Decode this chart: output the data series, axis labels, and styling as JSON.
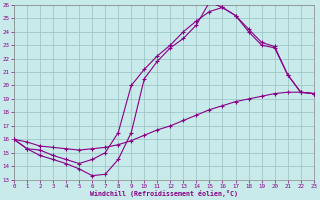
{
  "xlabel": "Windchill (Refroidissement éolien,°C)",
  "bg_color": "#c8eaea",
  "grid_color": "#9fc8c8",
  "line_color": "#880088",
  "xlim": [
    0,
    23
  ],
  "ylim": [
    13,
    26
  ],
  "xticks": [
    0,
    1,
    2,
    3,
    4,
    5,
    6,
    7,
    8,
    9,
    10,
    11,
    12,
    13,
    14,
    15,
    16,
    17,
    18,
    19,
    20,
    21,
    22,
    23
  ],
  "yticks": [
    13,
    14,
    15,
    16,
    17,
    18,
    19,
    20,
    21,
    22,
    23,
    24,
    25,
    26
  ],
  "line1_x": [
    0,
    1,
    2,
    3,
    4,
    5,
    6,
    7,
    8,
    9,
    10,
    11,
    12,
    13,
    14,
    15,
    16,
    17,
    18,
    19,
    20,
    21,
    22,
    23
  ],
  "line1_y": [
    16.0,
    15.8,
    15.5,
    15.4,
    15.3,
    15.2,
    15.3,
    15.4,
    15.6,
    15.9,
    16.3,
    16.7,
    17.0,
    17.4,
    17.8,
    18.2,
    18.5,
    18.8,
    19.0,
    19.2,
    19.4,
    19.5,
    19.5,
    19.4
  ],
  "line2_x": [
    0,
    1,
    2,
    3,
    4,
    5,
    6,
    7,
    8,
    9,
    10,
    11,
    12,
    13,
    14,
    15,
    16,
    17,
    18,
    19,
    20,
    21,
    22,
    23
  ],
  "line2_y": [
    16.0,
    15.3,
    15.2,
    14.8,
    14.5,
    14.2,
    14.5,
    15.0,
    16.5,
    20.0,
    21.2,
    22.2,
    23.0,
    24.0,
    24.8,
    25.5,
    25.8,
    25.2,
    24.2,
    23.2,
    22.9,
    20.8,
    19.5,
    19.4
  ],
  "line3_x": [
    0,
    1,
    2,
    3,
    4,
    5,
    6,
    7,
    8,
    9,
    10,
    11,
    12,
    13,
    14,
    15,
    16,
    17,
    18,
    19,
    20,
    21,
    22,
    23
  ],
  "line3_y": [
    16.0,
    15.3,
    14.8,
    14.5,
    14.2,
    13.8,
    13.3,
    13.4,
    14.5,
    16.5,
    20.5,
    21.8,
    22.8,
    23.5,
    24.5,
    26.2,
    25.8,
    25.2,
    24.0,
    23.0,
    22.8,
    20.8,
    19.5,
    19.4
  ]
}
